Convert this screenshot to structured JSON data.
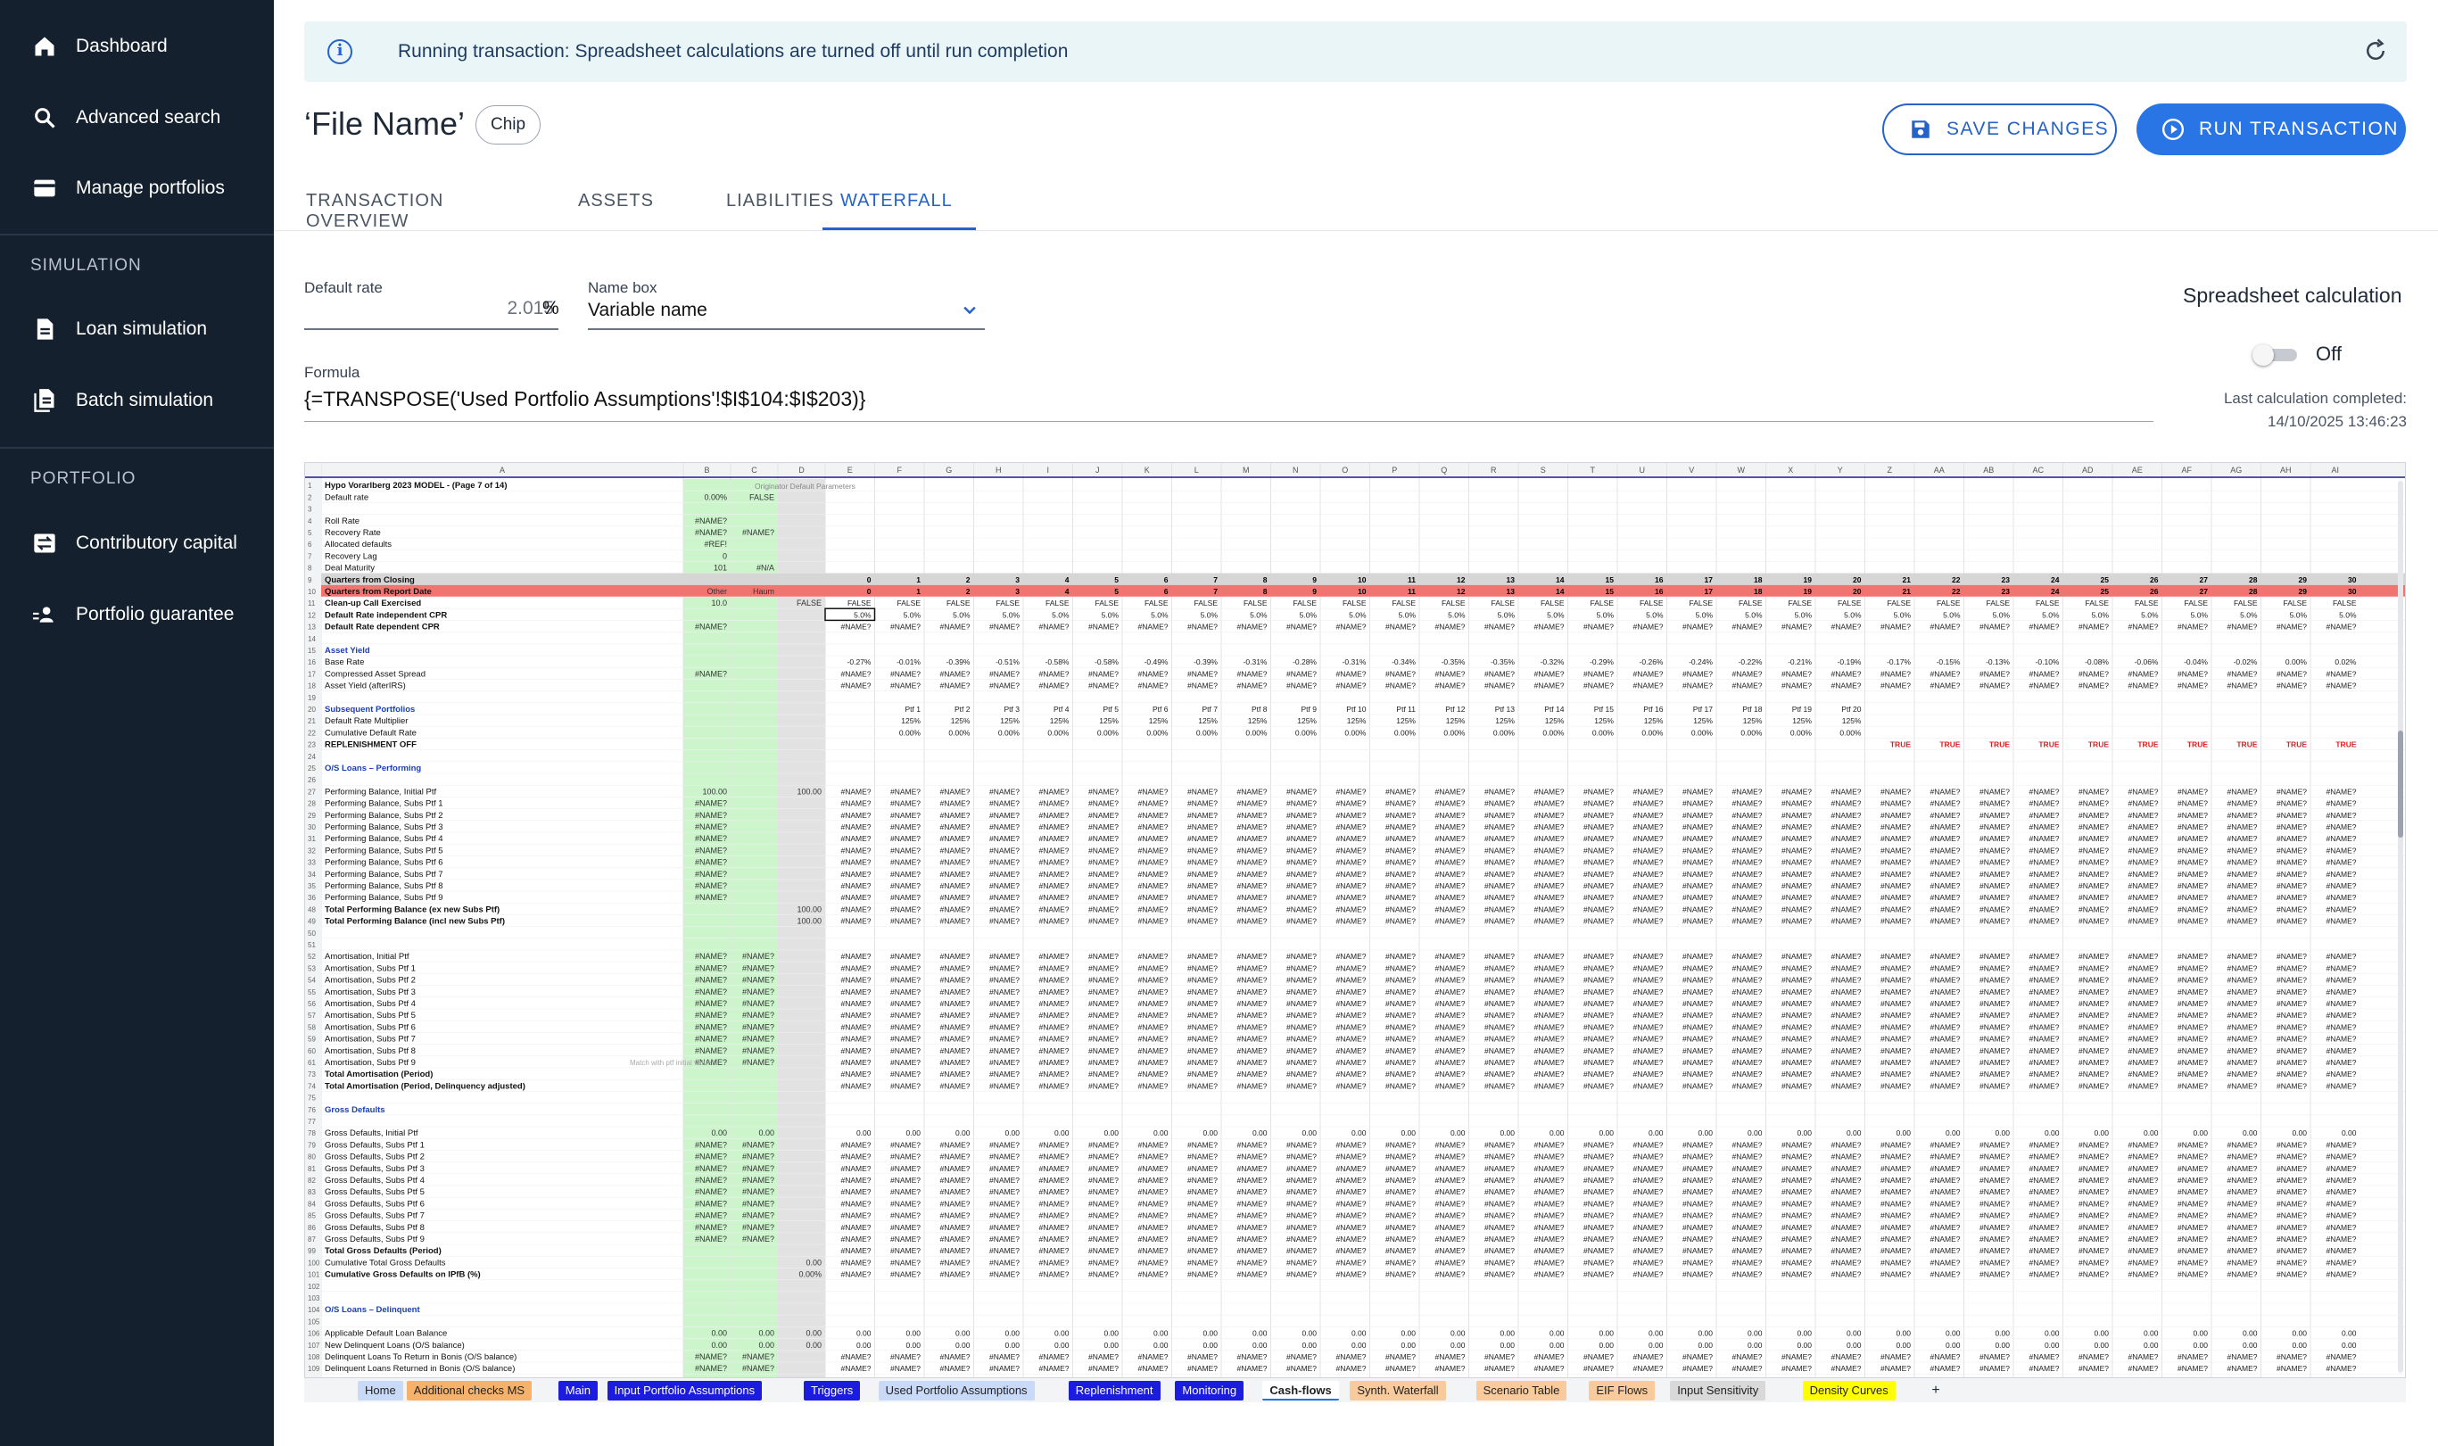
{
  "sidebar": {
    "items": [
      {
        "label": "Dashboard",
        "icon": "home-icon"
      },
      {
        "label": "Advanced search",
        "icon": "search-icon"
      },
      {
        "label": "Manage portfolios",
        "icon": "card-icon"
      }
    ],
    "sections": [
      {
        "title": "SIMULATION",
        "items": [
          {
            "label": "Loan simulation",
            "icon": "document-icon"
          },
          {
            "label": "Batch simulation",
            "icon": "documents-icon"
          }
        ]
      },
      {
        "title": "PORTFOLIO",
        "items": [
          {
            "label": "Contributory capital",
            "icon": "transfer-icon"
          },
          {
            "label": "Portfolio guarantee",
            "icon": "users-icon"
          }
        ]
      }
    ]
  },
  "banner": {
    "text": "Running transaction: Spreadsheet calculations are turned off until run completion"
  },
  "header": {
    "title": "‘File Name’",
    "chip": "Chip",
    "save_label": "SAVE CHANGES",
    "run_label": "RUN TRANSACTION"
  },
  "tabs": [
    "TRANSACTION OVERVIEW",
    "ASSETS",
    "LIABILITIES",
    "WATERFALL"
  ],
  "active_tab": "WATERFALL",
  "form": {
    "default_rate_label": "Default rate",
    "default_rate_value": "2.015",
    "default_rate_unit": "%",
    "name_box_label": "Name box",
    "name_box_value": "Variable name",
    "formula_label": "Formula",
    "formula_value": "{=TRANSPOSE('Used Portfolio Assumptions'!$I$104:$I$203)}"
  },
  "calc": {
    "title": "Spreadsheet calculation",
    "toggle_state": "Off",
    "last_label": "Last calculation completed:",
    "last_value": "14/10/2025 13:46:23"
  },
  "sheet": {
    "columns": [
      "A",
      "B",
      "C",
      "D",
      "E",
      "F",
      "G",
      "H",
      "I",
      "J",
      "K",
      "L",
      "M",
      "N",
      "O",
      "P",
      "Q",
      "R",
      "S",
      "T",
      "U",
      "V",
      "W",
      "X",
      "Y",
      "Z",
      "AA",
      "AB",
      "AC",
      "AD",
      "AE",
      "AF",
      "AG",
      "AH",
      "AI"
    ],
    "rows": [
      {
        "n": "1",
        "label": "Hypo Vorarlberg 2023 MODEL - (Page 7 of 14)",
        "style": "title"
      },
      {
        "n": "2",
        "label": "Default rate",
        "b": "0.00%",
        "c": "FALSE"
      },
      {
        "n": "3",
        "label": "",
        "style": "blank"
      },
      {
        "n": "4",
        "label": "Roll Rate",
        "b": "#NAME?"
      },
      {
        "n": "5",
        "label": "Recovery Rate",
        "b": "#NAME?",
        "c": "#NAME?"
      },
      {
        "n": "6",
        "label": "Allocated defaults",
        "b": "#REF!"
      },
      {
        "n": "7",
        "label": "Recovery Lag",
        "b": "0"
      },
      {
        "n": "8",
        "label": "Deal Maturity",
        "b": "101",
        "c": "#N/A"
      },
      {
        "n": "9",
        "label": "Quarters from Closing",
        "style": "grey",
        "fill": "index0"
      },
      {
        "n": "10",
        "label": "Quarters from Report Date",
        "style": "red",
        "b": "Other",
        "c": "Haum",
        "fill": "index0"
      },
      {
        "n": "11",
        "label": "Clean-up Call Exercised",
        "style": "bold",
        "b": "10.0",
        "d": "FALSE",
        "fill": "FALSE"
      },
      {
        "n": "12",
        "label": "Default Rate independent CPR",
        "style": "bold",
        "fill": "5.0%"
      },
      {
        "n": "13",
        "label": "Default Rate dependent CPR",
        "style": "bold",
        "b": "#NAME?",
        "fill": "#NAME?"
      },
      {
        "n": "14",
        "label": "",
        "style": "blank"
      },
      {
        "n": "15",
        "label": "Asset Yield",
        "style": "section"
      },
      {
        "n": "16",
        "label": "Base Rate",
        "fill": "base"
      },
      {
        "n": "17",
        "label": "Compressed Asset Spread",
        "b": "#NAME?",
        "fill": "#NAME?"
      },
      {
        "n": "18",
        "label": "Asset Yield (afterIRS)",
        "fill": "#NAME?"
      },
      {
        "n": "19",
        "label": "",
        "style": "blank"
      },
      {
        "n": "20",
        "label": "Subsequent Portfolios",
        "style": "section",
        "fill": "ptf"
      },
      {
        "n": "21",
        "label": "Default Rate Multiplier",
        "fill": "125%"
      },
      {
        "n": "22",
        "label": "Cumulative Default Rate",
        "fill": "0.00%"
      },
      {
        "n": "23",
        "label": "REPLENISHMENT OFF",
        "style": "bold",
        "fill": "repl"
      },
      {
        "n": "24",
        "label": "",
        "style": "blank"
      },
      {
        "n": "25",
        "label": "O/S Loans – Performing",
        "style": "section"
      },
      {
        "n": "26",
        "label": "",
        "style": "blank"
      },
      {
        "n": "27",
        "label": "Performing Balance, Initial Ptf",
        "b": "100.00",
        "d": "100.00",
        "fill": "#NAME?"
      },
      {
        "n": "28",
        "label": "Performing Balance, Subs Ptf 1",
        "b": "#NAME?",
        "fill": "#NAME?"
      },
      {
        "n": "29",
        "label": "Performing Balance, Subs Ptf 2",
        "b": "#NAME?",
        "fill": "#NAME?"
      },
      {
        "n": "30",
        "label": "Performing Balance, Subs Ptf 3",
        "b": "#NAME?",
        "fill": "#NAME?"
      },
      {
        "n": "31",
        "label": "Performing Balance, Subs Ptf 4",
        "b": "#NAME?",
        "fill": "#NAME?"
      },
      {
        "n": "32",
        "label": "Performing Balance, Subs Ptf 5",
        "b": "#NAME?",
        "fill": "#NAME?"
      },
      {
        "n": "33",
        "label": "Performing Balance, Subs Ptf 6",
        "b": "#NAME?",
        "fill": "#NAME?"
      },
      {
        "n": "34",
        "label": "Performing Balance, Subs Ptf 7",
        "b": "#NAME?",
        "fill": "#NAME?"
      },
      {
        "n": "35",
        "label": "Performing Balance, Subs Ptf 8",
        "b": "#NAME?",
        "fill": "#NAME?"
      },
      {
        "n": "36",
        "label": "Performing Balance, Subs Ptf 9",
        "b": "#NAME?",
        "fill": "#NAME?"
      },
      {
        "n": "48",
        "label": "Total Performing Balance (ex new Subs Ptf)",
        "style": "bold",
        "d": "100.00",
        "fill": "#NAME?"
      },
      {
        "n": "49",
        "label": "Total Performing Balance (incl new Subs Ptf)",
        "style": "bold",
        "d": "100.00",
        "fill": "#NAME?"
      },
      {
        "n": "50",
        "label": "",
        "style": "blank"
      },
      {
        "n": "51",
        "label": "",
        "style": "blank"
      },
      {
        "n": "52",
        "label": "Amortisation, Initial Ptf",
        "b": "#NAME?",
        "c": "#NAME?",
        "fill": "#NAME?"
      },
      {
        "n": "53",
        "label": "Amortisation, Subs Ptf 1",
        "b": "#NAME?",
        "c": "#NAME?",
        "fill": "#NAME?"
      },
      {
        "n": "54",
        "label": "Amortisation, Subs Ptf 2",
        "b": "#NAME?",
        "c": "#NAME?",
        "fill": "#NAME?"
      },
      {
        "n": "55",
        "label": "Amortisation, Subs Ptf 3",
        "b": "#NAME?",
        "c": "#NAME?",
        "fill": "#NAME?"
      },
      {
        "n": "56",
        "label": "Amortisation, Subs Ptf 4",
        "b": "#NAME?",
        "c": "#NAME?",
        "fill": "#NAME?"
      },
      {
        "n": "57",
        "label": "Amortisation, Subs Ptf 5",
        "b": "#NAME?",
        "c": "#NAME?",
        "fill": "#NAME?"
      },
      {
        "n": "58",
        "label": "Amortisation, Subs Ptf 6",
        "b": "#NAME?",
        "c": "#NAME?",
        "fill": "#NAME?"
      },
      {
        "n": "59",
        "label": "Amortisation, Subs Ptf 7",
        "b": "#NAME?",
        "c": "#NAME?",
        "fill": "#NAME?"
      },
      {
        "n": "60",
        "label": "Amortisation, Subs Ptf 8",
        "b": "#NAME?",
        "c": "#NAME?",
        "fill": "#NAME?"
      },
      {
        "n": "61",
        "label": "Amortisation, Subs Ptf 9",
        "b": "#NAME?",
        "c": "#NAME?",
        "fill": "#NAME?"
      },
      {
        "n": "73",
        "label": "Total Amortisation (Period)",
        "style": "bold",
        "fill": "#NAME?"
      },
      {
        "n": "74",
        "label": "Total Amortisation (Period, Delinquency adjusted)",
        "style": "bold",
        "fill": "#NAME?"
      },
      {
        "n": "75",
        "label": "",
        "style": "blank"
      },
      {
        "n": "76",
        "label": "Gross Defaults",
        "style": "section"
      },
      {
        "n": "77",
        "label": "",
        "style": "blank"
      },
      {
        "n": "78",
        "label": "Gross Defaults, Initial Ptf",
        "b": "0.00",
        "c": "0.00",
        "fill": "0.00"
      },
      {
        "n": "79",
        "label": "Gross Defaults, Subs Ptf 1",
        "b": "#NAME?",
        "c": "#NAME?",
        "fill": "#NAME?"
      },
      {
        "n": "80",
        "label": "Gross Defaults, Subs Ptf 2",
        "b": "#NAME?",
        "c": "#NAME?",
        "fill": "#NAME?"
      },
      {
        "n": "81",
        "label": "Gross Defaults, Subs Ptf 3",
        "b": "#NAME?",
        "c": "#NAME?",
        "fill": "#NAME?"
      },
      {
        "n": "82",
        "label": "Gross Defaults, Subs Ptf 4",
        "b": "#NAME?",
        "c": "#NAME?",
        "fill": "#NAME?"
      },
      {
        "n": "83",
        "label": "Gross Defaults, Subs Ptf 5",
        "b": "#NAME?",
        "c": "#NAME?",
        "fill": "#NAME?"
      },
      {
        "n": "84",
        "label": "Gross Defaults, Subs Ptf 6",
        "b": "#NAME?",
        "c": "#NAME?",
        "fill": "#NAME?"
      },
      {
        "n": "85",
        "label": "Gross Defaults, Subs Ptf 7",
        "b": "#NAME?",
        "c": "#NAME?",
        "fill": "#NAME?"
      },
      {
        "n": "86",
        "label": "Gross Defaults, Subs Ptf 8",
        "b": "#NAME?",
        "c": "#NAME?",
        "fill": "#NAME?"
      },
      {
        "n": "87",
        "label": "Gross Defaults, Subs Ptf 9",
        "b": "#NAME?",
        "c": "#NAME?",
        "fill": "#NAME?"
      },
      {
        "n": "99",
        "label": "Total Gross Defaults (Period)",
        "style": "bold",
        "fill": "#NAME?"
      },
      {
        "n": "100",
        "label": "Cumulative Total Gross Defaults",
        "d": "0.00",
        "fill": "#NAME?"
      },
      {
        "n": "101",
        "label": "Cumulative Gross Defaults on IPfB (%)",
        "style": "bold",
        "d": "0.00%",
        "fill": "#NAME?"
      },
      {
        "n": "102",
        "label": "",
        "style": "blank"
      },
      {
        "n": "103",
        "label": "",
        "style": "blank"
      },
      {
        "n": "104",
        "label": "O/S Loans – Delinquent",
        "style": "section"
      },
      {
        "n": "105",
        "label": "",
        "style": "blank"
      },
      {
        "n": "106",
        "label": "Applicable Default Loan Balance",
        "b": "0.00",
        "c": "0.00",
        "d": "0.00",
        "fill": "0.00"
      },
      {
        "n": "107",
        "label": "New Delinquent Loans (O/S balance)",
        "b": "0.00",
        "c": "0.00",
        "d": "0.00",
        "fill": "0.00"
      },
      {
        "n": "108",
        "label": "Delinquent Loans To Return in Bonis (O/S balance)",
        "b": "#NAME?",
        "c": "#NAME?",
        "fill": "#NAME?"
      },
      {
        "n": "109",
        "label": "Delinquent Loans Returned in Bonis (O/S balance)",
        "b": "#NAME?",
        "c": "#NAME?",
        "fill": "#NAME?"
      },
      {
        "n": "110",
        "label": "Delinquent Loans Rolled to Default (O/S balance)",
        "b": "#NAME?",
        "c": "#NAME?",
        "fill": "#NAME?"
      }
    ],
    "header_note": "Originator Default Parameters",
    "side_note": "Match with ptf initial value?",
    "base_rates": [
      "-0.27%",
      "-0.01%",
      "-0.39%",
      "-0.51%",
      "-0.58%",
      "-0.58%",
      "-0.49%",
      "-0.39%",
      "-0.31%",
      "-0.28%",
      "-0.31%",
      "-0.34%",
      "-0.35%",
      "-0.35%",
      "-0.32%",
      "-0.29%",
      "-0.26%",
      "-0.24%",
      "-0.22%",
      "-0.21%",
      "-0.19%",
      "-0.17%",
      "-0.15%",
      "-0.13%",
      "-0.10%",
      "-0.08%",
      "-0.06%",
      "-0.04%",
      "-0.02%",
      "0.00%",
      "0.02%"
    ],
    "sheet_tabs": [
      {
        "label": "Home",
        "color": "#c9daf8"
      },
      {
        "label": "Additional checks MS",
        "color": "#f6b26b"
      },
      {
        "label": "Main",
        "color": "#1c1cdf"
      },
      {
        "label": "Input Portfolio Assumptions",
        "color": "#1c1cdf"
      },
      {
        "label": "Triggers",
        "color": "#1c1cdf"
      },
      {
        "label": "Used Portfolio Assumptions",
        "color": "#c9daf8"
      },
      {
        "label": "Replenishment",
        "color": "#1c1cdf"
      },
      {
        "label": "Monitoring",
        "color": "#1c1cdf"
      },
      {
        "label": "Cash-flows",
        "color": "#ffffff"
      },
      {
        "label": "Synth. Waterfall",
        "color": "#f9cb9c"
      },
      {
        "label": "Scenario Table",
        "color": "#f9cb9c"
      },
      {
        "label": "EIF Flows",
        "color": "#f9cb9c"
      },
      {
        "label": "Input Sensitivity",
        "color": "#d9d9d9"
      },
      {
        "label": "Density Curves",
        "color": "#ffff00"
      }
    ]
  }
}
